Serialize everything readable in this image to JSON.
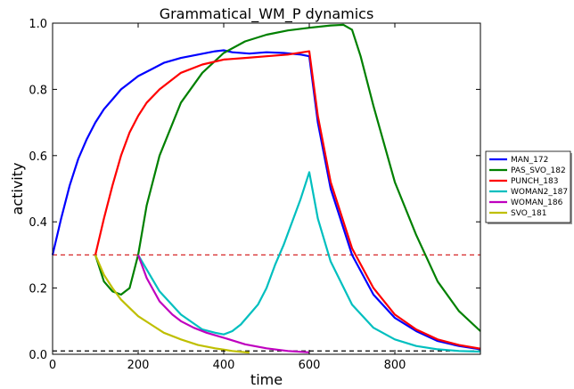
{
  "chart_data": {
    "type": "line",
    "title": "Grammatical_WM_P dynamics",
    "xlabel": "time",
    "ylabel": "activity",
    "xlim": [
      0,
      1000
    ],
    "ylim": [
      0,
      1.0
    ],
    "xticks": [
      0,
      200,
      400,
      600,
      800
    ],
    "yticks": [
      0.0,
      0.2,
      0.4,
      0.6,
      0.8,
      1.0
    ],
    "xtick_labels": [
      "0",
      "200",
      "400",
      "600",
      "800"
    ],
    "ytick_labels": [
      "0.0",
      "0.2",
      "0.4",
      "0.6",
      "0.8",
      "1.0"
    ],
    "grid": false,
    "legend_position": "right",
    "hlines": [
      {
        "y": 0.3,
        "color": "#d62728",
        "style": "dashed"
      },
      {
        "y": 0.01,
        "color": "#000000",
        "style": "dashed"
      }
    ],
    "series": [
      {
        "name": "MAN_172",
        "color": "#0000ff",
        "x": [
          0,
          20,
          40,
          60,
          80,
          100,
          120,
          140,
          160,
          180,
          200,
          230,
          260,
          300,
          340,
          380,
          400,
          420,
          460,
          500,
          540,
          580,
          600,
          620,
          650,
          700,
          750,
          800,
          850,
          900,
          950,
          1000
        ],
        "y": [
          0.3,
          0.41,
          0.51,
          0.59,
          0.65,
          0.7,
          0.74,
          0.77,
          0.8,
          0.82,
          0.84,
          0.86,
          0.88,
          0.895,
          0.905,
          0.915,
          0.918,
          0.912,
          0.908,
          0.912,
          0.91,
          0.905,
          0.9,
          0.7,
          0.5,
          0.3,
          0.18,
          0.11,
          0.07,
          0.04,
          0.025,
          0.015
        ]
      },
      {
        "name": "PAS_SVO_182",
        "color": "#008000",
        "x": [
          100,
          120,
          140,
          160,
          170,
          180,
          200,
          220,
          250,
          300,
          350,
          400,
          450,
          500,
          550,
          600,
          650,
          680,
          700,
          720,
          750,
          800,
          850,
          900,
          950,
          1000
        ],
        "y": [
          0.3,
          0.22,
          0.19,
          0.18,
          0.19,
          0.2,
          0.3,
          0.45,
          0.6,
          0.76,
          0.85,
          0.91,
          0.945,
          0.965,
          0.978,
          0.986,
          0.993,
          0.995,
          0.98,
          0.9,
          0.75,
          0.52,
          0.36,
          0.22,
          0.13,
          0.07
        ]
      },
      {
        "name": "PUNCH_183",
        "color": "#ff0000",
        "x": [
          100,
          120,
          140,
          160,
          180,
          200,
          220,
          250,
          300,
          350,
          400,
          450,
          500,
          550,
          600,
          620,
          650,
          700,
          750,
          800,
          850,
          900,
          950,
          1000
        ],
        "y": [
          0.3,
          0.41,
          0.51,
          0.6,
          0.67,
          0.72,
          0.76,
          0.8,
          0.85,
          0.875,
          0.89,
          0.895,
          0.9,
          0.905,
          0.915,
          0.72,
          0.52,
          0.32,
          0.2,
          0.12,
          0.075,
          0.045,
          0.028,
          0.017
        ]
      },
      {
        "name": "WOMAN2_187",
        "color": "#00bfbf",
        "x": [
          200,
          250,
          300,
          350,
          380,
          400,
          420,
          440,
          460,
          480,
          500,
          520,
          540,
          560,
          580,
          600,
          620,
          650,
          700,
          750,
          800,
          850,
          900,
          950,
          1000
        ],
        "y": [
          0.3,
          0.19,
          0.12,
          0.075,
          0.065,
          0.06,
          0.07,
          0.09,
          0.12,
          0.15,
          0.2,
          0.27,
          0.33,
          0.4,
          0.47,
          0.55,
          0.41,
          0.28,
          0.15,
          0.08,
          0.045,
          0.025,
          0.015,
          0.01,
          0.008
        ]
      },
      {
        "name": "WOMAN_186",
        "color": "#bf00bf",
        "x": [
          200,
          220,
          250,
          280,
          300,
          330,
          360,
          400,
          450,
          500,
          550,
          600
        ],
        "y": [
          0.3,
          0.23,
          0.16,
          0.12,
          0.1,
          0.08,
          0.065,
          0.05,
          0.03,
          0.018,
          0.01,
          0.006
        ]
      },
      {
        "name": "SVO_181",
        "color": "#bfbf00",
        "x": [
          100,
          120,
          140,
          160,
          180,
          200,
          230,
          260,
          300,
          340,
          380,
          420,
          460
        ],
        "y": [
          0.3,
          0.24,
          0.2,
          0.165,
          0.14,
          0.115,
          0.09,
          0.065,
          0.045,
          0.028,
          0.018,
          0.01,
          0.005
        ]
      }
    ]
  }
}
